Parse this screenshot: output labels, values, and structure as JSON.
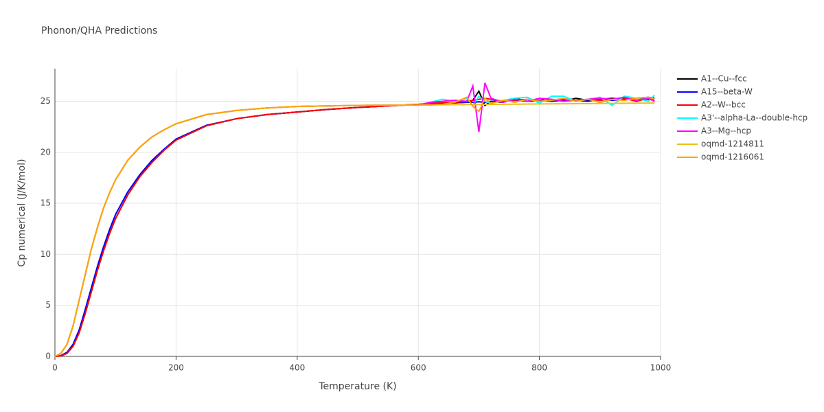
{
  "chart_data": {
    "type": "line",
    "title": "Phonon/QHA Predictions",
    "x_label": "Temperature (K)",
    "y_label": "Cp numerical (J/K/mol)",
    "x": [
      0,
      10,
      20,
      30,
      40,
      50,
      60,
      70,
      80,
      90,
      100,
      120,
      140,
      160,
      180,
      200,
      250,
      300,
      350,
      400,
      450,
      500,
      550,
      600,
      620,
      640,
      660,
      680,
      690,
      700,
      710,
      720,
      740,
      760,
      780,
      800,
      820,
      840,
      860,
      880,
      900,
      920,
      940,
      960,
      980,
      990
    ],
    "xlim": [
      0,
      1000
    ],
    "xticks": [
      0,
      200,
      400,
      600,
      800,
      1000
    ],
    "ylim": [
      0,
      28.2
    ],
    "yticks": [
      0,
      5,
      10,
      15,
      20,
      25
    ],
    "grid": true,
    "legend": "right",
    "series": [
      {
        "name": "A1--Cu--fcc",
        "color": "#000000",
        "values": [
          0,
          0.05,
          0.3,
          1.0,
          2.3,
          4.2,
          6.3,
          8.4,
          10.3,
          12.0,
          13.5,
          15.8,
          17.6,
          19.0,
          20.2,
          21.2,
          22.6,
          23.3,
          23.7,
          23.95,
          24.2,
          24.4,
          24.55,
          24.7,
          24.75,
          24.8,
          24.85,
          24.9,
          25.1,
          26.0,
          24.6,
          25.0,
          24.9,
          25.3,
          25.0,
          25.1,
          25.2,
          25.0,
          25.3,
          25.1,
          25.2,
          25.3,
          25.2,
          25.3,
          25.2,
          25.2
        ]
      },
      {
        "name": "A15--beta-W",
        "color": "#0000ff",
        "values": [
          0,
          0.08,
          0.4,
          1.2,
          2.6,
          4.6,
          6.7,
          8.8,
          10.7,
          12.4,
          13.9,
          16.1,
          17.8,
          19.2,
          20.3,
          21.3,
          22.65,
          23.3,
          23.7,
          23.95,
          24.2,
          24.4,
          24.55,
          24.7,
          24.75,
          24.8,
          24.85,
          24.9,
          24.9,
          24.95,
          24.9,
          25.0,
          25.0,
          25.1,
          25.0,
          25.1,
          25.0,
          25.1,
          25.1,
          25.0,
          25.2,
          25.1,
          25.2,
          25.3,
          25.4,
          25.3
        ]
      },
      {
        "name": "A2--W--bcc",
        "color": "#ff0000",
        "values": [
          0,
          0.05,
          0.3,
          1.0,
          2.3,
          4.2,
          6.3,
          8.4,
          10.3,
          12.0,
          13.5,
          15.8,
          17.6,
          19.0,
          20.2,
          21.2,
          22.6,
          23.3,
          23.7,
          23.95,
          24.2,
          24.4,
          24.55,
          24.7,
          24.8,
          24.85,
          24.9,
          25.0,
          25.1,
          25.2,
          25.3,
          25.2,
          25.0,
          25.1,
          25.2,
          25.0,
          25.1,
          25.2,
          25.1,
          25.2,
          25.1,
          25.2,
          25.3,
          25.0,
          25.3,
          25.0
        ]
      },
      {
        "name": "A3'--alpha-La--double-hcp",
        "color": "#00ffff",
        "values": [
          0,
          0.3,
          1.2,
          3.0,
          5.5,
          8.0,
          10.5,
          12.6,
          14.5,
          16.0,
          17.3,
          19.2,
          20.5,
          21.5,
          22.2,
          22.8,
          23.7,
          24.1,
          24.35,
          24.5,
          24.55,
          24.6,
          24.62,
          24.64,
          24.9,
          25.2,
          25.0,
          25.3,
          24.6,
          25.5,
          25.0,
          24.8,
          25.1,
          25.3,
          25.4,
          24.8,
          25.5,
          25.5,
          25.0,
          25.2,
          25.4,
          24.6,
          25.5,
          25.3,
          25.0,
          25.6
        ]
      },
      {
        "name": "A3--Mg--hcp",
        "color": "#ff00ff",
        "values": [
          0,
          0.3,
          1.2,
          3.0,
          5.5,
          8.0,
          10.5,
          12.6,
          14.5,
          16.0,
          17.3,
          19.2,
          20.5,
          21.5,
          22.2,
          22.8,
          23.7,
          24.1,
          24.35,
          24.5,
          24.55,
          24.6,
          24.62,
          24.64,
          24.9,
          25.0,
          25.1,
          25.0,
          26.5,
          22.0,
          26.8,
          25.3,
          24.9,
          25.2,
          25.0,
          25.3,
          25.2,
          25.0,
          25.1,
          25.2,
          25.3,
          25.2,
          25.4,
          25.1,
          25.3,
          25.0
        ]
      },
      {
        "name": "oqmd-1214811",
        "color": "#f2bc1b",
        "values": [
          0,
          0.3,
          1.2,
          3.0,
          5.5,
          8.0,
          10.5,
          12.6,
          14.5,
          16.0,
          17.3,
          19.2,
          20.5,
          21.5,
          22.2,
          22.8,
          23.7,
          24.1,
          24.35,
          24.5,
          24.55,
          24.6,
          24.62,
          24.64,
          24.65,
          24.66,
          24.67,
          24.68,
          24.68,
          24.69,
          24.7,
          24.7,
          24.71,
          24.72,
          24.73,
          24.74,
          24.75,
          24.76,
          24.77,
          24.78,
          24.79,
          24.8,
          24.81,
          24.82,
          24.83,
          24.84
        ]
      },
      {
        "name": "oqmd-1216061",
        "color": "#ffa500",
        "values": [
          0,
          0.3,
          1.2,
          3.0,
          5.5,
          8.0,
          10.5,
          12.6,
          14.5,
          16.0,
          17.3,
          19.2,
          20.5,
          21.5,
          22.2,
          22.8,
          23.7,
          24.1,
          24.35,
          24.5,
          24.55,
          24.6,
          24.62,
          24.64,
          24.65,
          24.7,
          24.9,
          25.4,
          24.5,
          24.0,
          25.3,
          24.8,
          25.1,
          24.9,
          25.2,
          25.0,
          25.1,
          25.3,
          25.0,
          25.2,
          24.9,
          25.2,
          25.1,
          25.3,
          25.4,
          25.2
        ]
      }
    ]
  }
}
